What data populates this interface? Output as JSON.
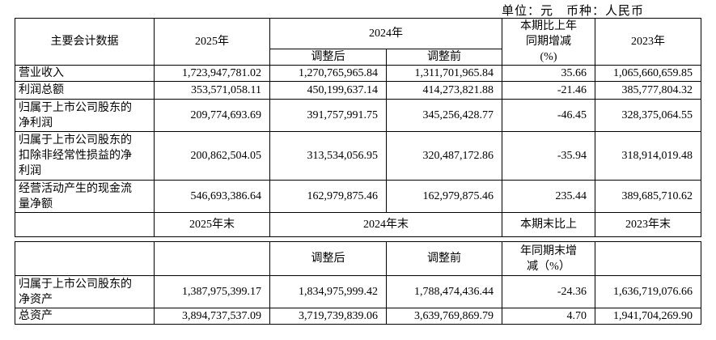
{
  "unit_note": "单位：元　币种：人民币",
  "income_table": {
    "headers": [
      "主要会计数据",
      "2025年",
      "2024年",
      "本期比上年同期增减(%)",
      "2023年"
    ],
    "subheaders": [
      "调整后",
      "调整前"
    ],
    "rows": [
      [
        "营业收入",
        "1,723,947,781.02",
        "1,270,765,965.84",
        "1,311,701,965.84",
        "35.66",
        "1,065,660,659.85"
      ],
      [
        "利润总额",
        "353,571,058.11",
        "450,199,637.14",
        "414,273,821.88",
        "-21.46",
        "385,777,804.32"
      ],
      [
        "归属于上市公司股东的净利润",
        "209,774,693.69",
        "391,757,991.75",
        "345,256,428.77",
        "-46.45",
        "328,375,064.55"
      ],
      [
        "归属于上市公司股东的扣除非经常性损益的净利润",
        "200,862,504.05",
        "313,534,056.95",
        "320,487,172.86",
        "-35.94",
        "318,914,019.48"
      ],
      [
        "经营活动产生的现金流量净额",
        "546,693,386.64",
        "162,979,875.46",
        "162,979,875.46",
        "235.44",
        "389,685,710.62"
      ]
    ],
    "period_end_headers": [
      "2025年末",
      "2024年末",
      "本期末比上",
      "2023年末"
    ]
  },
  "balance_table": {
    "subheaders": [
      "调整后",
      "调整前",
      "年同期末增减（%）"
    ],
    "rows": [
      [
        "归属于上市公司股东的净资产",
        "1,387,975,399.17",
        "1,834,975,999.42",
        "1,788,474,436.44",
        "-24.36",
        "1,636,719,076.66"
      ],
      [
        "总资产",
        "3,894,737,537.09",
        "3,719,739,839.06",
        "3,639,769,869.79",
        "4.70",
        "1,941,704,269.90"
      ]
    ]
  }
}
